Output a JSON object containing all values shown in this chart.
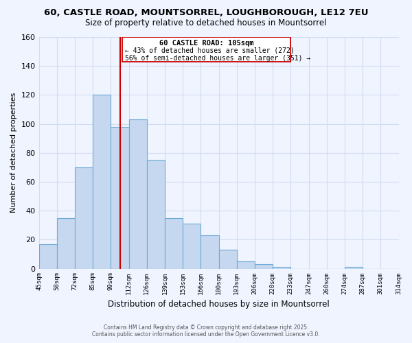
{
  "title": "60, CASTLE ROAD, MOUNTSORREL, LOUGHBOROUGH, LE12 7EU",
  "subtitle": "Size of property relative to detached houses in Mountsorrel",
  "xlabel": "Distribution of detached houses by size in Mountsorrel",
  "ylabel": "Number of detached properties",
  "bar_values": [
    17,
    35,
    70,
    120,
    98,
    103,
    75,
    35,
    31,
    23,
    13,
    5,
    3,
    1,
    0,
    0,
    0,
    1,
    0,
    0
  ],
  "bin_labels": [
    "45sqm",
    "58sqm",
    "72sqm",
    "85sqm",
    "99sqm",
    "112sqm",
    "126sqm",
    "139sqm",
    "153sqm",
    "166sqm",
    "180sqm",
    "193sqm",
    "206sqm",
    "220sqm",
    "233sqm",
    "247sqm",
    "260sqm",
    "274sqm",
    "287sqm",
    "301sqm",
    "314sqm"
  ],
  "n_bins": 20,
  "bar_color": "#c5d8f0",
  "bar_edge_color": "#6aaad4",
  "vline_x_index": 4.54,
  "vline_color": "#cc0000",
  "ylim": [
    0,
    160
  ],
  "yticks": [
    0,
    20,
    40,
    60,
    80,
    100,
    120,
    140,
    160
  ],
  "annotation_title": "60 CASTLE ROAD: 105sqm",
  "annotation_line1": "← 43% of detached houses are smaller (272)",
  "annotation_line2": "56% of semi-detached houses are larger (351) →",
  "footer1": "Contains HM Land Registry data © Crown copyright and database right 2025.",
  "footer2": "Contains public sector information licensed under the Open Government Licence v3.0.",
  "bg_color": "#f0f4ff",
  "grid_color": "#d0dcf0"
}
